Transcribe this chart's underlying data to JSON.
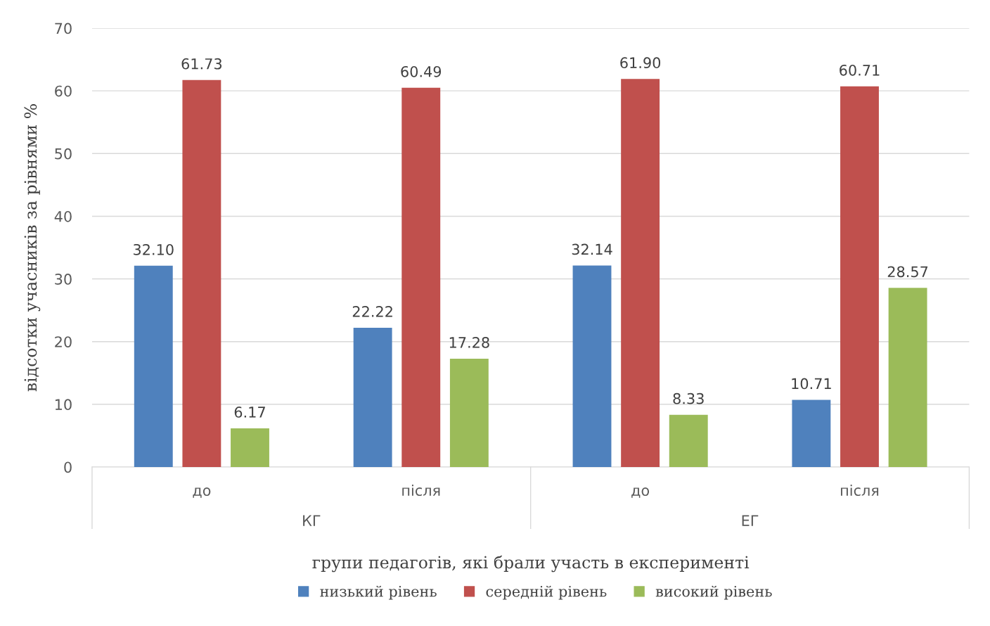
{
  "chart_data": {
    "type": "bar",
    "xlabel": "групи педагогів, які брали участь в експерименті",
    "ylabel": "відсотки учасників за рівнями %",
    "categories": [
      "до",
      "після",
      "до",
      "після"
    ],
    "series": [
      {
        "name": "низький рівень",
        "color": "#4f81bd",
        "values": [
          32.1,
          22.22,
          32.14,
          10.71
        ],
        "value_labels": [
          "32.10",
          "22.22",
          "32.14",
          "10.71"
        ]
      },
      {
        "name": "середній рівень",
        "color": "#c0504d",
        "values": [
          61.73,
          60.49,
          61.9,
          60.71
        ],
        "value_labels": [
          "61.73",
          "60.49",
          "61.90",
          "60.71"
        ]
      },
      {
        "name": "високий рівень",
        "color": "#9bbb59",
        "values": [
          6.17,
          17.28,
          8.33,
          28.57
        ],
        "value_labels": [
          "6.17",
          "17.28",
          "8.33",
          "28.57"
        ]
      }
    ],
    "annotations": [
      "КГ",
      "ЕГ"
    ],
    "ylim": [
      0,
      70
    ],
    "yticks": [
      0,
      10,
      20,
      30,
      40,
      50,
      60,
      70
    ],
    "grid": "y",
    "legend": "bottom",
    "marker": "square"
  }
}
